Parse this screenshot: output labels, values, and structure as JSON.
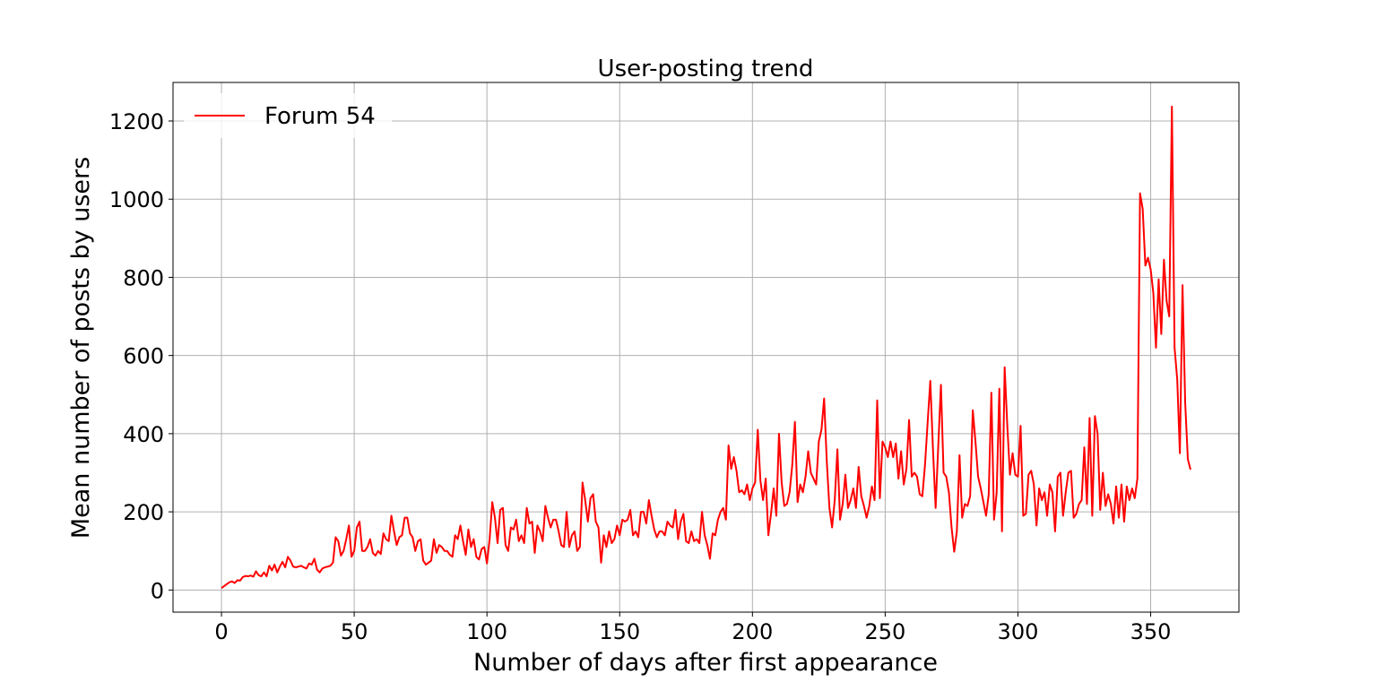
{
  "chart_data": {
    "type": "line",
    "title": "User-posting trend",
    "x_label": "Number of days after first appearance",
    "y_label": "Mean number of posts by users",
    "x": [
      0,
      1,
      2,
      3,
      4,
      5,
      6,
      7,
      8,
      9,
      10,
      11,
      12,
      13,
      14,
      15,
      16,
      17,
      18,
      19,
      20,
      21,
      22,
      23,
      24,
      25,
      26,
      27,
      28,
      29,
      30,
      31,
      32,
      33,
      34,
      35,
      36,
      37,
      38,
      39,
      40,
      41,
      42,
      43,
      44,
      45,
      46,
      47,
      48,
      49,
      50,
      51,
      52,
      53,
      54,
      55,
      56,
      57,
      58,
      59,
      60,
      61,
      62,
      63,
      64,
      65,
      66,
      67,
      68,
      69,
      70,
      71,
      72,
      73,
      74,
      75,
      76,
      77,
      78,
      79,
      80,
      81,
      82,
      83,
      84,
      85,
      86,
      87,
      88,
      89,
      90,
      91,
      92,
      93,
      94,
      95,
      96,
      97,
      98,
      99,
      100,
      101,
      102,
      103,
      104,
      105,
      106,
      107,
      108,
      109,
      110,
      111,
      112,
      113,
      114,
      115,
      116,
      117,
      118,
      119,
      120,
      121,
      122,
      123,
      124,
      125,
      126,
      127,
      128,
      129,
      130,
      131,
      132,
      133,
      134,
      135,
      136,
      137,
      138,
      139,
      140,
      141,
      142,
      143,
      144,
      145,
      146,
      147,
      148,
      149,
      150,
      151,
      152,
      153,
      154,
      155,
      156,
      157,
      158,
      159,
      160,
      161,
      162,
      163,
      164,
      165,
      166,
      167,
      168,
      169,
      170,
      171,
      172,
      173,
      174,
      175,
      176,
      177,
      178,
      179,
      180,
      181,
      182,
      183,
      184,
      185,
      186,
      187,
      188,
      189,
      190,
      191,
      192,
      193,
      194,
      195,
      196,
      197,
      198,
      199,
      200,
      201,
      202,
      203,
      204,
      205,
      206,
      207,
      208,
      209,
      210,
      211,
      212,
      213,
      214,
      215,
      216,
      217,
      218,
      219,
      220,
      221,
      222,
      223,
      224,
      225,
      226,
      227,
      228,
      229,
      230,
      231,
      232,
      233,
      234,
      235,
      236,
      237,
      238,
      239,
      240,
      241,
      242,
      243,
      244,
      245,
      246,
      247,
      248,
      249,
      250,
      251,
      252,
      253,
      254,
      255,
      256,
      257,
      258,
      259,
      260,
      261,
      262,
      263,
      264,
      265,
      266,
      267,
      268,
      269,
      270,
      271,
      272,
      273,
      274,
      275,
      276,
      277,
      278,
      279,
      280,
      281,
      282,
      283,
      284,
      285,
      286,
      287,
      288,
      289,
      290,
      291,
      292,
      293,
      294,
      295,
      296,
      297,
      298,
      299,
      300,
      301,
      302,
      303,
      304,
      305,
      306,
      307,
      308,
      309,
      310,
      311,
      312,
      313,
      314,
      315,
      316,
      317,
      318,
      319,
      320,
      321,
      322,
      323,
      324,
      325,
      326,
      327,
      328,
      329,
      330,
      331,
      332,
      333,
      334,
      335,
      336,
      337,
      338,
      339,
      340,
      341,
      342,
      343,
      344,
      345,
      346,
      347,
      348,
      349,
      350,
      351,
      352,
      353,
      354,
      355,
      356,
      357,
      358,
      359,
      360,
      361,
      362,
      363,
      364,
      365
    ],
    "series": [
      {
        "name": "Forum 54",
        "color": "#ff0000",
        "values": [
          5,
          10,
          15,
          20,
          22,
          18,
          25,
          24,
          33,
          36,
          35,
          37,
          34,
          48,
          38,
          35,
          45,
          35,
          62,
          50,
          65,
          45,
          60,
          72,
          58,
          85,
          75,
          60,
          58,
          60,
          62,
          58,
          55,
          68,
          65,
          80,
          52,
          45,
          55,
          58,
          60,
          62,
          70,
          135,
          125,
          88,
          100,
          130,
          165,
          85,
          100,
          160,
          175,
          100,
          100,
          110,
          130,
          95,
          88,
          100,
          92,
          145,
          130,
          125,
          190,
          150,
          115,
          135,
          140,
          185,
          185,
          145,
          135,
          100,
          125,
          130,
          75,
          65,
          70,
          75,
          130,
          95,
          115,
          110,
          100,
          100,
          90,
          85,
          140,
          130,
          165,
          125,
          90,
          155,
          110,
          130,
          85,
          78,
          105,
          110,
          68,
          130,
          225,
          185,
          120,
          205,
          210,
          115,
          100,
          160,
          155,
          180,
          125,
          140,
          120,
          210,
          170,
          175,
          95,
          165,
          150,
          125,
          215,
          185,
          160,
          180,
          180,
          150,
          115,
          110,
          200,
          110,
          140,
          150,
          100,
          110,
          275,
          230,
          175,
          235,
          245,
          175,
          160,
          70,
          140,
          110,
          150,
          120,
          130,
          165,
          140,
          180,
          175,
          180,
          205,
          140,
          150,
          135,
          200,
          200,
          170,
          230,
          190,
          155,
          135,
          150,
          150,
          140,
          175,
          165,
          160,
          205,
          130,
          175,
          195,
          125,
          120,
          150,
          125,
          130,
          120,
          200,
          140,
          115,
          80,
          145,
          140,
          180,
          200,
          210,
          180,
          370,
          310,
          340,
          305,
          250,
          255,
          245,
          270,
          230,
          260,
          275,
          410,
          280,
          230,
          285,
          140,
          195,
          260,
          190,
          400,
          275,
          215,
          220,
          250,
          320,
          430,
          225,
          270,
          250,
          290,
          355,
          300,
          285,
          270,
          380,
          410,
          490,
          330,
          210,
          160,
          230,
          360,
          180,
          220,
          295,
          210,
          230,
          260,
          210,
          315,
          240,
          215,
          185,
          215,
          265,
          230,
          485,
          235,
          380,
          365,
          340,
          380,
          340,
          375,
          285,
          355,
          270,
          310,
          435,
          290,
          300,
          290,
          245,
          240,
          320,
          430,
          535,
          360,
          210,
          370,
          525,
          300,
          290,
          250,
          160,
          98,
          150,
          345,
          185,
          220,
          215,
          240,
          460,
          380,
          290,
          260,
          225,
          190,
          245,
          505,
          180,
          250,
          515,
          150,
          570,
          420,
          295,
          350,
          295,
          290,
          420,
          190,
          195,
          295,
          305,
          270,
          165,
          260,
          230,
          250,
          190,
          270,
          250,
          150,
          290,
          300,
          190,
          250,
          300,
          305,
          185,
          195,
          220,
          230,
          365,
          220,
          440,
          190,
          445,
          400,
          205,
          300,
          215,
          245,
          220,
          170,
          265,
          185,
          270,
          175,
          265,
          230,
          260,
          235,
          285,
          1015,
          975,
          830,
          850,
          820,
          760,
          620,
          795,
          655,
          845,
          740,
          700,
          1237,
          620,
          540,
          350,
          780,
          480,
          335,
          308
        ]
      }
    ],
    "xlim": [
      -18.25,
      383.25
    ],
    "xticks": [
      0,
      50,
      100,
      150,
      200,
      250,
      300,
      350
    ],
    "ylim": [
      -56.6,
      1298.6
    ],
    "yticks": [
      0,
      200,
      400,
      600,
      800,
      1000,
      1200
    ],
    "grid": true,
    "legend": "upper left"
  }
}
